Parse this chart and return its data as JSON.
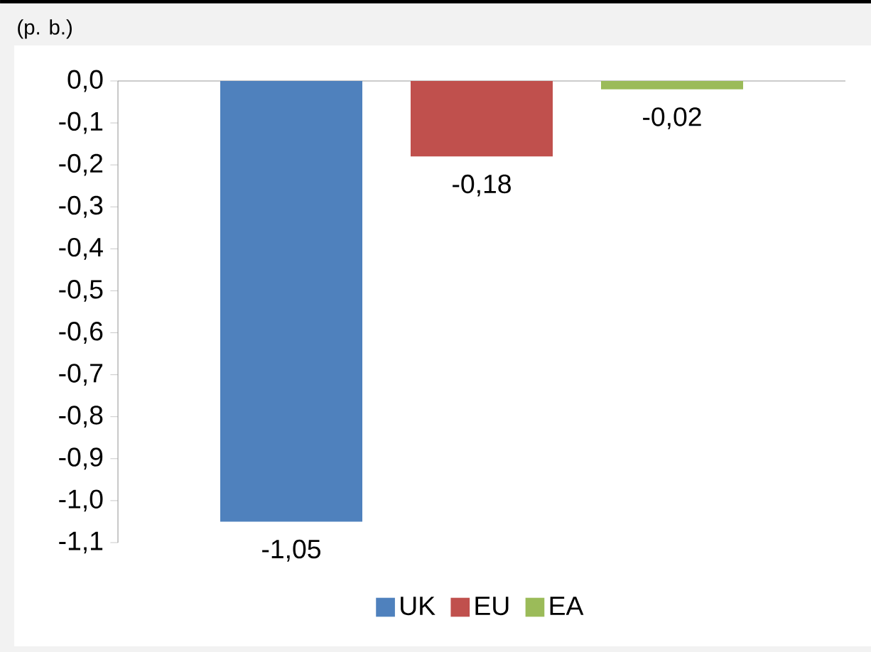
{
  "chart_data": {
    "type": "bar",
    "ylabel": "(p. b.)",
    "categories": [
      null
    ],
    "series": [
      {
        "name": "UK",
        "color": "#4f81bd",
        "values": [
          -1.05
        ],
        "value_labels": [
          "-1,05"
        ]
      },
      {
        "name": "EU",
        "color": "#c0504d",
        "values": [
          -0.18
        ],
        "value_labels": [
          "-0,18"
        ]
      },
      {
        "name": "EA",
        "color": "#9bbb59",
        "values": [
          -0.02
        ],
        "value_labels": [
          "-0,02"
        ]
      }
    ],
    "ylim": [
      -1.1,
      0
    ],
    "yticks": [
      {
        "value": 0,
        "label": "0,0"
      },
      {
        "value": -0.1,
        "label": "-0,1"
      },
      {
        "value": -0.2,
        "label": "-0,2"
      },
      {
        "value": -0.3,
        "label": "-0,3"
      },
      {
        "value": -0.4,
        "label": "-0,4"
      },
      {
        "value": -0.5,
        "label": "-0,5"
      },
      {
        "value": -0.6,
        "label": "-0,6"
      },
      {
        "value": -0.7,
        "label": "-0,7"
      },
      {
        "value": -0.8,
        "label": "-0,8"
      },
      {
        "value": -0.9,
        "label": "-0,9"
      },
      {
        "value": -1.0,
        "label": "-1,0"
      },
      {
        "value": -1.1,
        "label": "-1,1"
      }
    ],
    "legend": "bottom",
    "grid": false
  }
}
